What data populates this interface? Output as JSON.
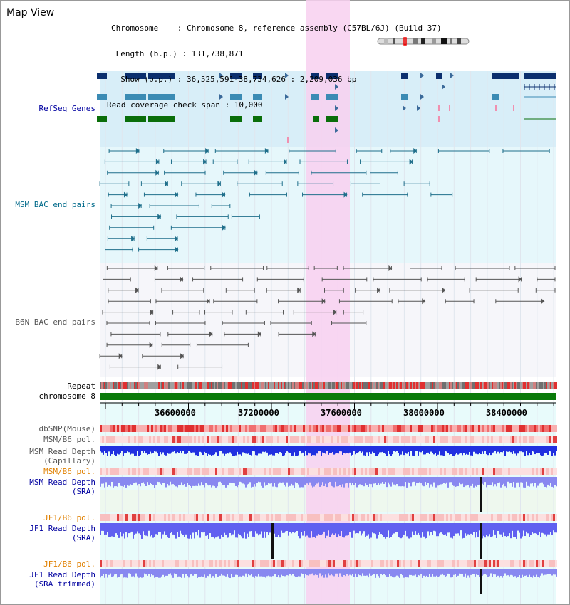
{
  "view": {
    "title": "Map View"
  },
  "info": {
    "chromosome": "Chromosome    : Chromosome 8, reference assembly (C57BL/6J) (Build 37)",
    "length": " Length (b.p.) : 131,738,871",
    "show": "  Show (b.p.) : 36,525,591-38,734,626 : 2,209,036 bp",
    "read_cov": "Read coverage check span : 10,000"
  },
  "tracks": {
    "refseq": "RefSeq Genes",
    "msm_bac": "MSM BAC end pairs",
    "b6n_bac": "B6N BAC end pairs",
    "repeat": "Repeat",
    "chromosome": "chromosome 8",
    "dbsnp": "dbSNP(Mouse)",
    "msm_b6_pol_1": "MSM/B6 pol.",
    "msm_read_depth_cap_1": "MSM Read Depth",
    "msm_read_depth_cap_2": "(Capillary)",
    "msm_b6_pol_2": "MSM/B6 pol.",
    "msm_read_depth_sra_1": "MSM Read Depth",
    "msm_read_depth_sra_2": "(SRA)",
    "jf1_b6_pol_1": "JF1/B6 pol.",
    "jf1_read_depth_sra_1": "JF1 Read Depth",
    "jf1_read_depth_sra_2": "(SRA)",
    "jf1_b6_pol_2": "JF1/B6 pol.",
    "jf1_read_depth_trim_1": "JF1 Read Depth",
    "jf1_read_depth_trim_2": "(SRA trimmed)"
  },
  "axis": {
    "ticks": [
      "36600000",
      "37200000",
      "37600000",
      "38000000",
      "38400000"
    ]
  },
  "colors": {
    "refseq_bg": "#d8eef8",
    "msm_bg": "#e6f7fb",
    "highlight": "#f8d0f0",
    "refseq_dark": "#0b2f6e",
    "refseq_mid": "#3b8bb4",
    "refseq_green": "#0a6e0a",
    "msm_line": "#1f6f8b",
    "b6n_line": "#555555",
    "label_blue": "#0000a0",
    "label_teal": "#006a8a",
    "label_orange": "#e08000"
  }
}
